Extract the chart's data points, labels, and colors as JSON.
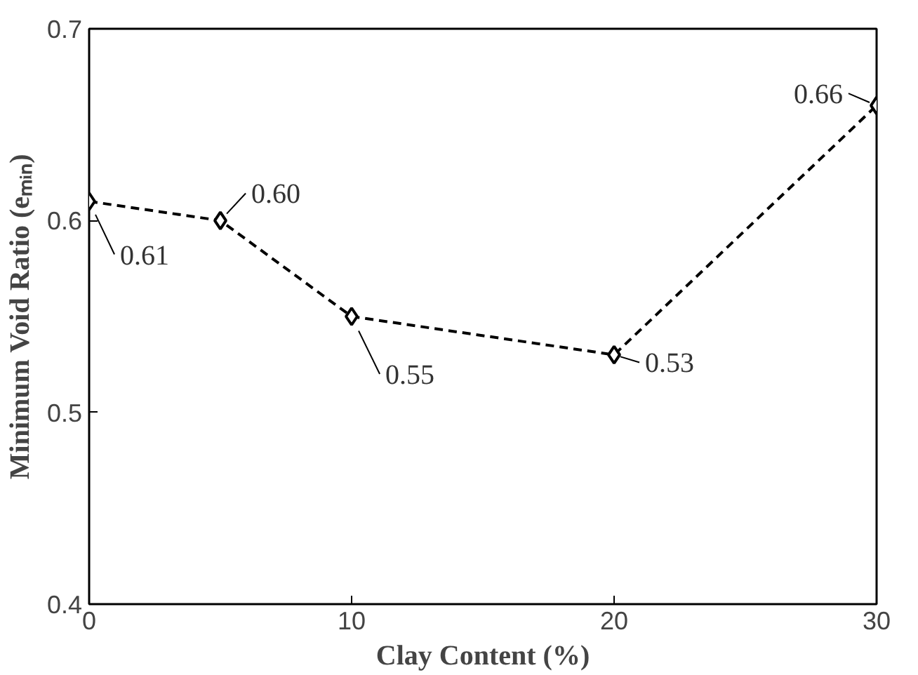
{
  "chart_data": {
    "type": "line",
    "xlabel": "Clay Content (%)",
    "ylabel": "Minimum Void Ratio (eₘᵢₙ)",
    "x": [
      0,
      5,
      10,
      20,
      30
    ],
    "series": [
      {
        "color": "#000000",
        "values": [
          0.61,
          0.6,
          0.55,
          0.53,
          0.66
        ],
        "value_labels": [
          "0.61",
          "0.60",
          "0.55",
          "0.53",
          "0.66"
        ]
      }
    ],
    "xlim": [
      0,
      30
    ],
    "xticks": [
      0,
      10,
      20,
      30
    ],
    "ylim": [
      0.4,
      0.7
    ],
    "yticks": [
      0.4,
      0.5,
      0.6,
      0.7
    ],
    "grid": false,
    "marker": "diamond",
    "line_style": "dashed"
  }
}
